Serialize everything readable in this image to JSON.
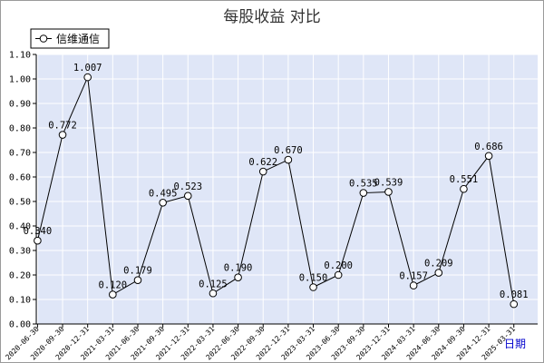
{
  "chart_data": {
    "type": "line",
    "title": "每股收益  对比",
    "xlabel": "日期",
    "ylabel": "",
    "ylim": [
      0,
      1.1
    ],
    "yticks": [
      "0.00",
      "0.10",
      "0.20",
      "0.30",
      "0.40",
      "0.50",
      "0.60",
      "0.70",
      "0.80",
      "0.90",
      "1.00",
      "1.10"
    ],
    "grid": true,
    "legend_position": "top-left",
    "colors": {
      "line": "#000000",
      "plot_bg": "#dfe6f7",
      "grid": "#ffffff"
    },
    "x": [
      "2020-06-30",
      "2020-09-30",
      "2020-12-31",
      "2021-03-31",
      "2021-06-30",
      "2021-09-30",
      "2021-12-31",
      "2022-03-31",
      "2022-06-30",
      "2022-09-30",
      "2022-12-31",
      "2023-03-31",
      "2023-06-30",
      "2023-09-30",
      "2023-12-31",
      "2024-03-31",
      "2024-06-30",
      "2024-09-30",
      "2024-12-31",
      "2025-03-31"
    ],
    "series": [
      {
        "name": "信维通信",
        "values": [
          0.34,
          0.772,
          1.007,
          0.12,
          0.179,
          0.495,
          0.523,
          0.125,
          0.19,
          0.622,
          0.67,
          0.15,
          0.2,
          0.535,
          0.539,
          0.157,
          0.209,
          0.551,
          0.686,
          0.081
        ],
        "labels": [
          "0.340",
          "0.772",
          "1.007",
          "0.120",
          "0.179",
          "0.495",
          "0.523",
          "0.125",
          "0.190",
          "0.622",
          "0.670",
          "0.150",
          "0.200",
          "0.535",
          "0.539",
          "0.157",
          "0.209",
          "0.551",
          "0.686",
          "0.081"
        ]
      }
    ]
  }
}
